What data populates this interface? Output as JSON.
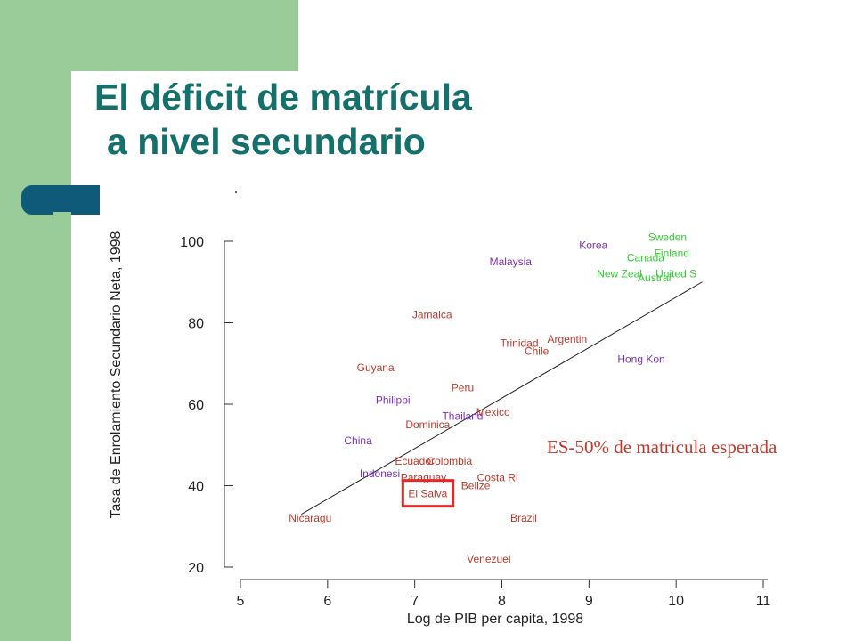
{
  "slide": {
    "title_line1": "El déficit de matrícula",
    "title_line2": "a nivel secundario",
    "annotation": "ES-50% de matricula esperada",
    "colors": {
      "title": "#13706b",
      "green": "#99cc99",
      "accent": "#0e5a78",
      "highlight_box": "#e8262a"
    }
  },
  "chart_data": {
    "type": "scatter",
    "xlabel": "Log de PIB per capita, 1998",
    "ylabel": "Tasa de Enrolamiento Secundario Neta, 1998",
    "xlim": [
      5,
      11
    ],
    "ylim": [
      20,
      100
    ],
    "x_ticks": [
      "5",
      "6",
      "7",
      "8",
      "9",
      "10",
      "11"
    ],
    "y_ticks": [
      "20",
      "40",
      "60",
      "80",
      "100"
    ],
    "fit_line": {
      "x": [
        5.7,
        10.3
      ],
      "y": [
        33,
        90
      ]
    },
    "highlight": "El Salva",
    "colors": {
      "red": "#c0392b",
      "purple": "#7b2fbf",
      "green": "#33cc33"
    },
    "points": [
      {
        "label": "Sweden",
        "x": 9.9,
        "y": 101,
        "color": "green"
      },
      {
        "label": "Finland",
        "x": 9.95,
        "y": 97,
        "color": "green"
      },
      {
        "label": "Canada",
        "x": 9.65,
        "y": 96,
        "color": "green"
      },
      {
        "label": "New Zeal",
        "x": 9.35,
        "y": 92,
        "color": "green"
      },
      {
        "label": "United S",
        "x": 10.0,
        "y": 92,
        "color": "green"
      },
      {
        "label": "Austral",
        "x": 9.75,
        "y": 91,
        "color": "green"
      },
      {
        "label": "Korea",
        "x": 9.05,
        "y": 99,
        "color": "purple"
      },
      {
        "label": "Malaysia",
        "x": 8.1,
        "y": 95,
        "color": "purple"
      },
      {
        "label": "Jamaica",
        "x": 7.2,
        "y": 82,
        "color": "red"
      },
      {
        "label": "Trinidad",
        "x": 8.2,
        "y": 75,
        "color": "red"
      },
      {
        "label": "Argentin",
        "x": 8.75,
        "y": 76,
        "color": "red"
      },
      {
        "label": "Chile",
        "x": 8.4,
        "y": 73,
        "color": "red"
      },
      {
        "label": "Hong Kon",
        "x": 9.6,
        "y": 71,
        "color": "purple"
      },
      {
        "label": "Guyana",
        "x": 6.55,
        "y": 69,
        "color": "red"
      },
      {
        "label": "Peru",
        "x": 7.55,
        "y": 64,
        "color": "red"
      },
      {
        "label": "Philippi",
        "x": 6.75,
        "y": 61,
        "color": "purple"
      },
      {
        "label": "Thailand",
        "x": 7.55,
        "y": 57,
        "color": "purple"
      },
      {
        "label": "Mexico",
        "x": 7.9,
        "y": 58,
        "color": "red"
      },
      {
        "label": "Dominica",
        "x": 7.15,
        "y": 55,
        "color": "red"
      },
      {
        "label": "China",
        "x": 6.35,
        "y": 51,
        "color": "purple"
      },
      {
        "label": "Ecuador",
        "x": 7.0,
        "y": 46,
        "color": "red"
      },
      {
        "label": "Colombia",
        "x": 7.4,
        "y": 46,
        "color": "red"
      },
      {
        "label": "Indonesi",
        "x": 6.6,
        "y": 43,
        "color": "purple"
      },
      {
        "label": "Paraguay",
        "x": 7.1,
        "y": 42,
        "color": "red"
      },
      {
        "label": "Costa Ri",
        "x": 7.95,
        "y": 42,
        "color": "red"
      },
      {
        "label": "Belize",
        "x": 7.7,
        "y": 40,
        "color": "red"
      },
      {
        "label": "El Salva",
        "x": 7.15,
        "y": 38,
        "color": "red"
      },
      {
        "label": "Nicaragu",
        "x": 5.8,
        "y": 32,
        "color": "red"
      },
      {
        "label": "Brazil",
        "x": 8.25,
        "y": 32,
        "color": "red"
      },
      {
        "label": "Venezuel",
        "x": 7.85,
        "y": 22,
        "color": "red"
      }
    ]
  }
}
